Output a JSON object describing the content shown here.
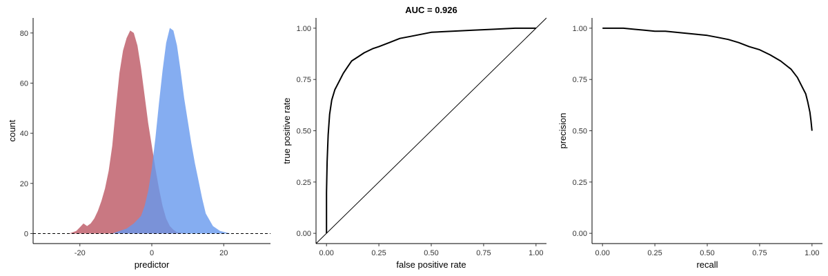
{
  "chart_data": [
    {
      "type": "area",
      "title": "",
      "xlabel": "predictor",
      "ylabel": "count",
      "xlim": [
        -33,
        33
      ],
      "ylim": [
        -4,
        86
      ],
      "xticks": [
        -20,
        0,
        20
      ],
      "yticks": [
        0,
        20,
        40,
        60,
        80
      ],
      "reference_line": {
        "y": 0,
        "style": "dashed"
      },
      "grid": false,
      "legend": "none",
      "series": [
        {
          "color": "#c0606c",
          "x": [
            -23,
            -21,
            -20,
            -19,
            -18,
            -17,
            -16,
            -15,
            -14,
            -13,
            -12,
            -11,
            -10,
            -9,
            -8,
            -7,
            -6,
            -5,
            -4,
            -3,
            -2,
            -1,
            0,
            1,
            2,
            3,
            4,
            5,
            6,
            7,
            9,
            11
          ],
          "y": [
            0,
            1,
            2.5,
            4,
            3,
            4,
            6,
            9,
            13,
            18,
            25,
            35,
            50,
            64,
            73,
            78,
            81,
            80,
            75,
            66,
            55,
            44,
            35,
            26,
            18,
            11,
            6,
            3,
            1.5,
            0.5,
            0.2,
            0
          ]
        },
        {
          "color": "#6699ee",
          "x": [
            -11,
            -9,
            -7,
            -5,
            -3,
            -2,
            -1,
            0,
            1,
            2,
            3,
            4,
            5,
            6,
            7,
            8,
            9,
            10,
            11,
            12,
            13,
            14,
            15,
            17,
            19,
            21,
            22
          ],
          "y": [
            0,
            1,
            2,
            4,
            7,
            11,
            17,
            26,
            38,
            52,
            65,
            76,
            82,
            81,
            75,
            65,
            54,
            45,
            36,
            28,
            21,
            14,
            8,
            3,
            1,
            0.3,
            0
          ]
        }
      ]
    },
    {
      "type": "line",
      "title": "AUC = 0.926",
      "xlabel": "false positive rate",
      "ylabel": "true positive rate",
      "xlim": [
        -0.05,
        1.05
      ],
      "ylim": [
        -0.05,
        1.05
      ],
      "xticks": [
        "0.00",
        "0.25",
        "0.50",
        "0.75",
        "1.00"
      ],
      "yticks": [
        "0.00",
        "0.25",
        "0.50",
        "0.75",
        "1.00"
      ],
      "grid": false,
      "legend": "none",
      "reference_line": {
        "from": [
          -0.05,
          -0.05
        ],
        "to": [
          1.05,
          1.05
        ],
        "style": "solid"
      },
      "series": [
        {
          "color": "#000000",
          "x": [
            0.0,
            0.0,
            0.003,
            0.008,
            0.015,
            0.025,
            0.04,
            0.06,
            0.08,
            0.1,
            0.12,
            0.15,
            0.18,
            0.22,
            0.25,
            0.3,
            0.35,
            0.4,
            0.45,
            0.5,
            0.6,
            0.7,
            0.8,
            0.9,
            1.0
          ],
          "y": [
            0.0,
            0.2,
            0.35,
            0.48,
            0.58,
            0.65,
            0.7,
            0.74,
            0.78,
            0.81,
            0.84,
            0.86,
            0.88,
            0.9,
            0.91,
            0.93,
            0.95,
            0.96,
            0.97,
            0.98,
            0.985,
            0.99,
            0.995,
            1.0,
            1.0
          ]
        }
      ]
    },
    {
      "type": "line",
      "title": "",
      "xlabel": "recall",
      "ylabel": "precision",
      "xlim": [
        -0.05,
        1.05
      ],
      "ylim": [
        -0.05,
        1.05
      ],
      "xticks": [
        "0.00",
        "0.25",
        "0.50",
        "0.75",
        "1.00"
      ],
      "yticks": [
        "0.00",
        "0.25",
        "0.50",
        "0.75",
        "1.00"
      ],
      "grid": false,
      "legend": "none",
      "series": [
        {
          "color": "#000000",
          "x": [
            0.0,
            0.05,
            0.1,
            0.15,
            0.2,
            0.25,
            0.3,
            0.35,
            0.4,
            0.45,
            0.5,
            0.55,
            0.6,
            0.65,
            0.7,
            0.75,
            0.8,
            0.85,
            0.9,
            0.93,
            0.95,
            0.97,
            0.98,
            0.99,
            0.995,
            1.0
          ],
          "y": [
            1.0,
            1.0,
            1.0,
            0.995,
            0.99,
            0.985,
            0.985,
            0.98,
            0.975,
            0.97,
            0.965,
            0.955,
            0.945,
            0.93,
            0.91,
            0.895,
            0.87,
            0.84,
            0.8,
            0.76,
            0.72,
            0.68,
            0.64,
            0.59,
            0.55,
            0.5
          ]
        }
      ]
    }
  ]
}
